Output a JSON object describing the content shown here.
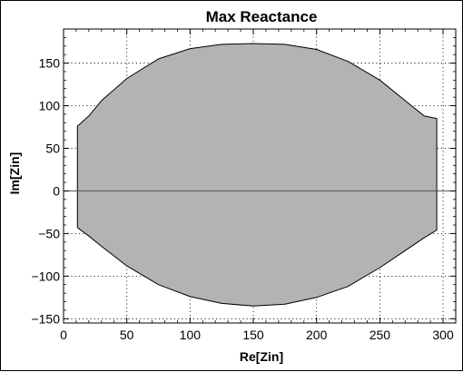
{
  "chart_data": {
    "type": "area",
    "title": "Max Reactance",
    "xlabel": "Re[Zin]",
    "ylabel": "Im[Zin]",
    "xlim": [
      0,
      310
    ],
    "ylim": [
      -155,
      190
    ],
    "xticks": [
      0,
      50,
      100,
      150,
      200,
      250,
      300
    ],
    "yticks": [
      -150,
      -100,
      -50,
      0,
      50,
      100,
      150
    ],
    "xtick_labels": [
      "0",
      "50",
      "100",
      "150",
      "200",
      "250",
      "300"
    ],
    "ytick_labels": [
      "−150",
      "−100",
      "−50",
      "0",
      "50",
      "100",
      "150"
    ],
    "grid": true,
    "grid_style": "dotted",
    "fill_color": "#b3b3b3",
    "edge_color": "#000000",
    "zero_line_color": "#555555",
    "series": [
      {
        "upper_x": [
          11,
          20,
          30,
          50,
          75,
          100,
          125,
          150,
          175,
          200,
          225,
          250,
          270,
          285,
          295
        ],
        "upper_y": [
          76,
          88,
          106,
          132,
          155,
          167,
          172,
          173,
          172,
          166,
          152,
          130,
          106,
          88,
          85
        ],
        "lower_x": [
          11,
          20,
          30,
          50,
          75,
          100,
          125,
          150,
          175,
          200,
          225,
          250,
          270,
          285,
          295
        ],
        "lower_y": [
          -43,
          -53,
          -65,
          -88,
          -110,
          -124,
          -132,
          -135,
          -133,
          -125,
          -112,
          -90,
          -70,
          -55,
          -46
        ]
      }
    ]
  }
}
